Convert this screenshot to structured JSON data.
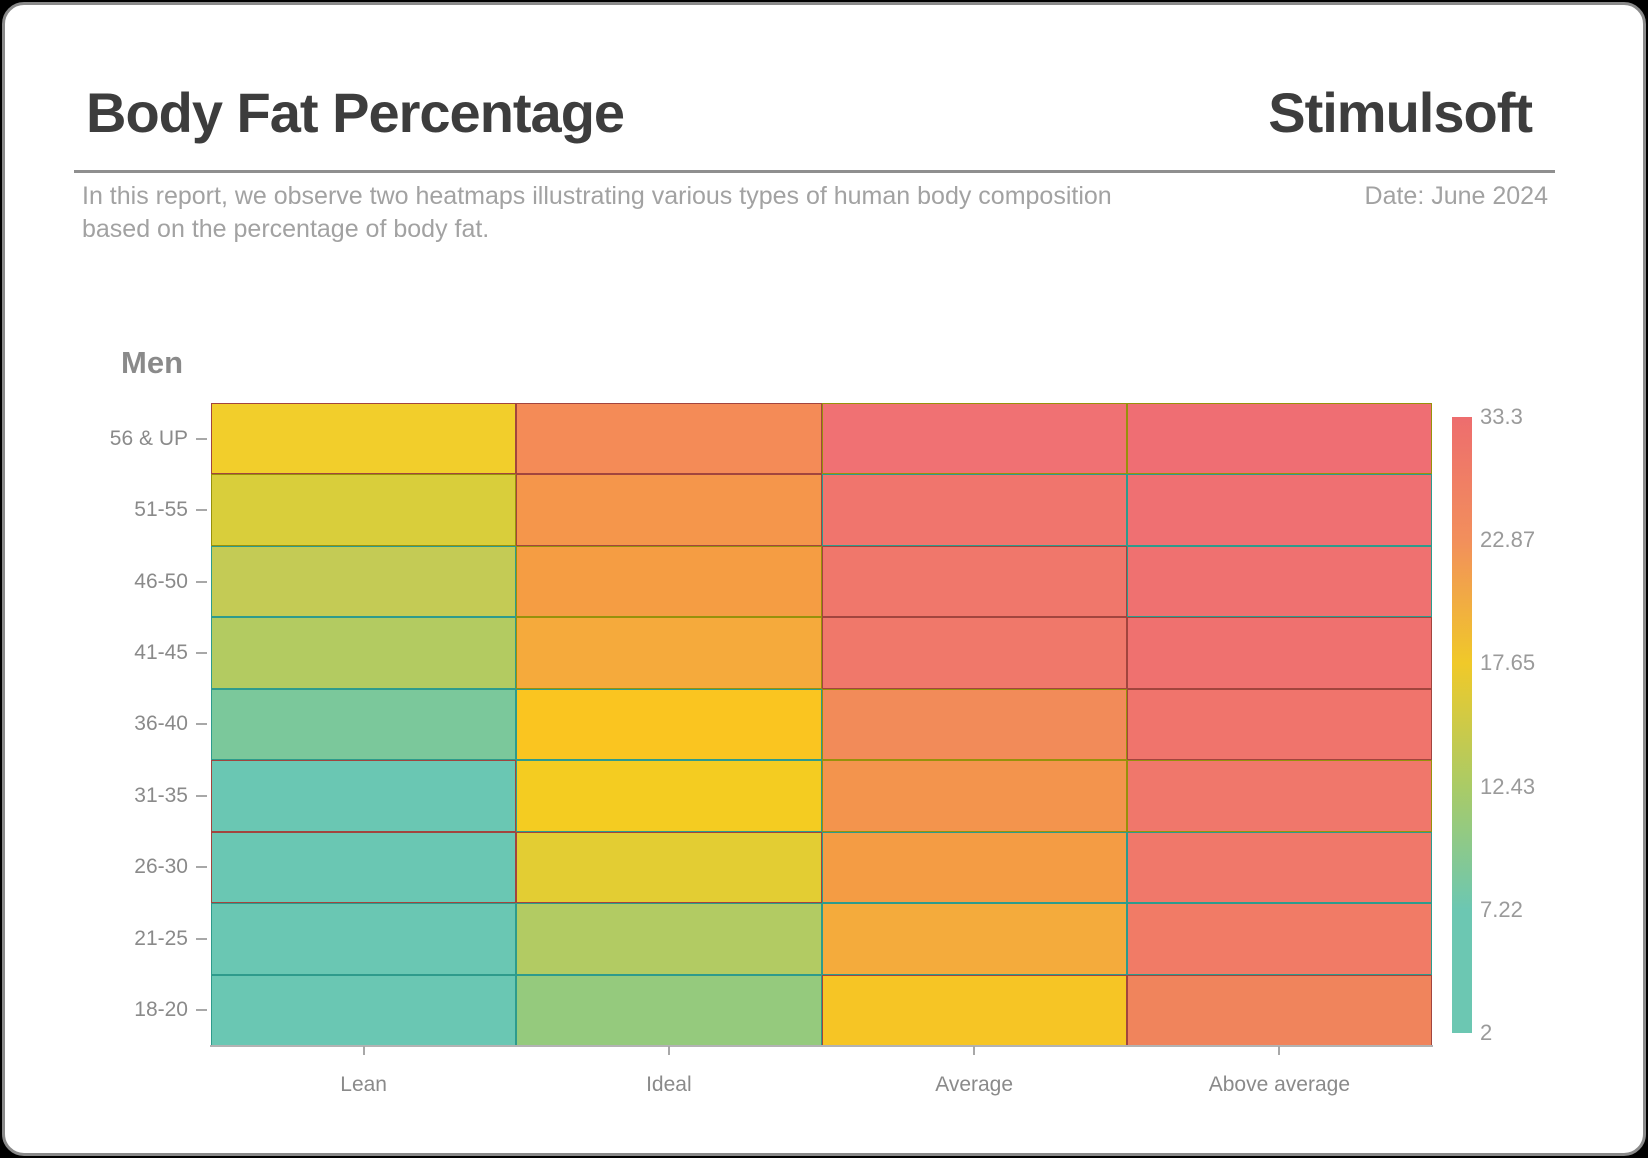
{
  "header": {
    "title": "Body Fat Percentage",
    "brand": "Stimulsoft",
    "subtitle_line1": "In this report, we observe two heatmaps illustrating various types of human body composition",
    "subtitle_line2": "based on the percentage of body fat.",
    "date": "Date: June 2024"
  },
  "chart_data": {
    "type": "heatmap",
    "title": "Men",
    "x_categories": [
      "Lean",
      "Ideal",
      "Average",
      "Above average"
    ],
    "y_categories": [
      "56 & UP",
      "51-55",
      "46-50",
      "41-45",
      "36-40",
      "31-35",
      "26-30",
      "21-25",
      "18-20"
    ],
    "values": [
      [
        17.5,
        23.5,
        28.5,
        31.5
      ],
      [
        15.8,
        22.0,
        27.8,
        31.0
      ],
      [
        14.6,
        21.3,
        27.2,
        30.5
      ],
      [
        13.4,
        20.3,
        26.8,
        30.2
      ],
      [
        9.8,
        18.9,
        23.8,
        28.8
      ],
      [
        7.0,
        17.7,
        22.2,
        28.2
      ],
      [
        6.3,
        16.5,
        21.2,
        27.8
      ],
      [
        5.5,
        12.9,
        19.8,
        27.2
      ],
      [
        4.2,
        10.8,
        17.9,
        24.3
      ]
    ],
    "cell_colors": [
      [
        "#F2CE2B",
        "#F48B57",
        "#F07173",
        "#EF6E73"
      ],
      [
        "#D9CE3B",
        "#F5964B",
        "#F0756D",
        "#EF7072"
      ],
      [
        "#C4CB55",
        "#F59D43",
        "#F0776B",
        "#EF7170"
      ],
      [
        "#B3CB61",
        "#F5AA3C",
        "#F0786A",
        "#EF716F"
      ],
      [
        "#7BC89B",
        "#FAC520",
        "#F28B59",
        "#F0746C"
      ],
      [
        "#6AC7B3",
        "#F4CC21",
        "#F3944D",
        "#F0776B"
      ],
      [
        "#6AC7B3",
        "#E3CD33",
        "#F49C44",
        "#F0786A"
      ],
      [
        "#6AC7B3",
        "#B2CB63",
        "#F4AB3C",
        "#F17B66"
      ],
      [
        "#6AC7B3",
        "#95CA7D",
        "#F6C525",
        "#F0845C"
      ]
    ],
    "cell_borders": [
      [
        "#A2453E",
        "#A2453E",
        "#97910B",
        "#97910B"
      ],
      [
        "#97910B",
        "#A2453E",
        "#2E9B8C",
        "#2E9B8C"
      ],
      [
        "#2E9B8C",
        "#97910B",
        "#A2453E",
        "#2E9B8C"
      ],
      [
        "#2E9B8C",
        "#97910B",
        "#A2453E",
        "#A2453E"
      ],
      [
        "#2E9B8C",
        "#2E9B8C",
        "#97910B",
        "#A2453E"
      ],
      [
        "#A2453E",
        "#2E9B8C",
        "#97910B",
        "#97910B"
      ],
      [
        "#A2453E",
        "#A2453E",
        "#2E9B8C",
        "#2E9B8C"
      ],
      [
        "#2E9B8C",
        "#2E9B8C",
        "#2E9B8C",
        "#2E9B8C"
      ],
      [
        "#2E9B8C",
        "#2E9B8C",
        "#A2453E",
        "#A2453E"
      ]
    ],
    "value_range": [
      2,
      33.3
    ],
    "legend_position": "right",
    "colorbar": {
      "labels": [
        "33.3",
        "22.87",
        "17.65",
        "12.43",
        "7.22",
        "2"
      ],
      "gradient_stops": [
        {
          "pos": 0,
          "color": "#ED6D6E"
        },
        {
          "pos": 20,
          "color": "#F28F5C"
        },
        {
          "pos": 40,
          "color": "#F0C929"
        },
        {
          "pos": 60,
          "color": "#AACB66"
        },
        {
          "pos": 80,
          "color": "#6CC7B2"
        },
        {
          "pos": 100,
          "color": "#6CC7B2"
        }
      ]
    }
  },
  "frame": {
    "card_background": "#ffffff",
    "card_border": "#8a8a8a",
    "outer_background": "#000000",
    "title_color": "#3d3d3d",
    "muted_text_color": "#a2a2a2",
    "axis_text_color": "#8a8a8a"
  }
}
